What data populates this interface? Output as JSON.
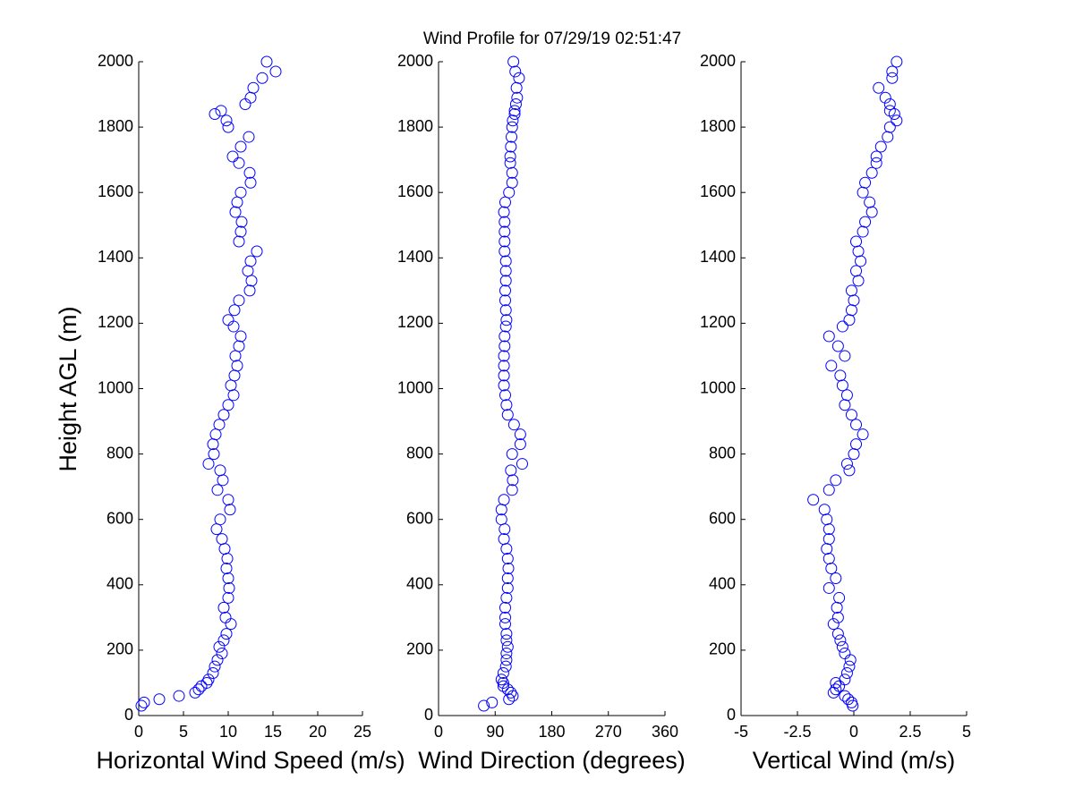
{
  "chart_data": [
    {
      "type": "scatter",
      "title": "Wind Profile for  07/29/19 02:51:47",
      "ylabel": "Height AGL (m)",
      "xlabel": "Horizontal Wind Speed (m/s)",
      "color": "#0000ff",
      "xlim": [
        0,
        25
      ],
      "xticks": [
        0,
        5,
        10,
        15,
        20,
        25
      ],
      "ylim": [
        0,
        2000
      ],
      "yticks": [
        0,
        200,
        400,
        600,
        800,
        1000,
        1200,
        1400,
        1600,
        1800,
        2000
      ],
      "x": [
        0.3,
        0.6,
        2.3,
        4.5,
        6.3,
        6.7,
        7,
        7.6,
        7.8,
        8.3,
        8.5,
        8.8,
        9.3,
        9,
        9.5,
        9.8,
        10.3,
        9.7,
        9.5,
        10,
        10.1,
        10,
        9.8,
        9.9,
        9.6,
        9.3,
        8.7,
        9.1,
        10.2,
        10,
        8.8,
        9.4,
        9.1,
        7.8,
        8.4,
        8.3,
        8.6,
        9,
        9.5,
        10,
        10.6,
        10.3,
        10.7,
        11,
        10.8,
        11.2,
        11.4,
        10.6,
        10,
        10.7,
        11.2,
        12.4,
        12.6,
        12.2,
        12.5,
        13.2,
        11.2,
        11.4,
        11.5,
        10.8,
        11,
        11.4,
        12.5,
        12.4,
        11.2,
        10.5,
        11.4,
        12.3,
        10,
        9.8,
        8.5,
        9.2,
        11.9,
        12.5,
        12.8,
        13.8,
        15.3,
        14.3
      ],
      "y": [
        30,
        40,
        50,
        60,
        70,
        80,
        90,
        100,
        110,
        130,
        150,
        170,
        190,
        210,
        230,
        250,
        280,
        300,
        330,
        360,
        390,
        420,
        450,
        480,
        510,
        540,
        570,
        600,
        630,
        660,
        690,
        720,
        750,
        770,
        800,
        830,
        860,
        890,
        920,
        950,
        980,
        1010,
        1040,
        1070,
        1100,
        1130,
        1160,
        1190,
        1210,
        1240,
        1270,
        1300,
        1330,
        1360,
        1390,
        1420,
        1450,
        1480,
        1510,
        1540,
        1570,
        1600,
        1630,
        1660,
        1690,
        1710,
        1740,
        1770,
        1800,
        1820,
        1840,
        1850,
        1870,
        1890,
        1920,
        1950,
        1970,
        2000
      ]
    },
    {
      "type": "scatter",
      "xlabel": "Wind Direction (degrees)",
      "color": "#0000ff",
      "xlim": [
        0,
        360
      ],
      "xticks": [
        0,
        90,
        180,
        270,
        360
      ],
      "ylim": [
        0,
        2000
      ],
      "yticks": [
        0,
        200,
        400,
        600,
        800,
        1000,
        1200,
        1400,
        1600,
        1800,
        2000
      ],
      "x": [
        72,
        85,
        112,
        118,
        115,
        110,
        103,
        103,
        100,
        103,
        107,
        108,
        108,
        110,
        108,
        108,
        106,
        106,
        106,
        108,
        110,
        110,
        111,
        110,
        108,
        104,
        105,
        100,
        100,
        104,
        117,
        118,
        115,
        133,
        117,
        130,
        130,
        120,
        110,
        108,
        106,
        104,
        104,
        104,
        104,
        105,
        105,
        107,
        108,
        107,
        106,
        106,
        107,
        107,
        107,
        105,
        105,
        105,
        105,
        104,
        106,
        112,
        117,
        117,
        114,
        114,
        115,
        116,
        117,
        118,
        121,
        121,
        123,
        125,
        124,
        128,
        122,
        119
      ],
      "y": [
        30,
        40,
        50,
        60,
        70,
        80,
        90,
        100,
        110,
        130,
        150,
        170,
        190,
        210,
        230,
        250,
        280,
        300,
        330,
        360,
        390,
        420,
        450,
        480,
        510,
        540,
        570,
        600,
        630,
        660,
        690,
        720,
        750,
        770,
        800,
        830,
        860,
        890,
        920,
        950,
        980,
        1010,
        1040,
        1070,
        1100,
        1130,
        1160,
        1190,
        1210,
        1240,
        1270,
        1300,
        1330,
        1360,
        1390,
        1420,
        1450,
        1480,
        1510,
        1540,
        1570,
        1600,
        1630,
        1660,
        1690,
        1710,
        1740,
        1770,
        1800,
        1820,
        1840,
        1850,
        1870,
        1890,
        1920,
        1950,
        1970,
        2000
      ]
    },
    {
      "type": "scatter",
      "xlabel": "Vertical Wind (m/s)",
      "color": "#0000ff",
      "xlim": [
        -5,
        5
      ],
      "xticks": [
        -5,
        -2.5,
        0,
        2.5,
        5
      ],
      "ylim": [
        0,
        2000
      ],
      "yticks": [
        0,
        200,
        400,
        600,
        800,
        1000,
        1200,
        1400,
        1600,
        1800,
        2000
      ],
      "x": [
        -0.05,
        -0.1,
        -0.25,
        -0.4,
        -0.9,
        -0.8,
        -0.65,
        -0.8,
        -0.4,
        -0.3,
        -0.2,
        -0.15,
        -0.4,
        -0.5,
        -0.6,
        -0.7,
        -0.9,
        -0.7,
        -0.75,
        -0.65,
        -1.1,
        -0.8,
        -1,
        -1.1,
        -1.2,
        -1.1,
        -1.1,
        -1.2,
        -1.3,
        -1.8,
        -1.1,
        -0.8,
        -0.2,
        -0.3,
        0,
        0.1,
        0.4,
        0.1,
        -0.1,
        -0.4,
        -0.3,
        -0.5,
        -0.6,
        -1,
        -0.4,
        -0.7,
        -1.1,
        -0.5,
        -0.2,
        -0.1,
        0,
        -0.1,
        0.2,
        0.1,
        0.3,
        0.2,
        0.1,
        0.4,
        0.5,
        0.8,
        0.7,
        0.4,
        0.5,
        0.8,
        1,
        1,
        1.2,
        1.5,
        1.6,
        1.9,
        1.8,
        1.6,
        1.6,
        1.4,
        1.1,
        1.7,
        1.7,
        1.9
      ],
      "y": [
        30,
        40,
        50,
        60,
        70,
        80,
        90,
        100,
        110,
        130,
        150,
        170,
        190,
        210,
        230,
        250,
        280,
        300,
        330,
        360,
        390,
        420,
        450,
        480,
        510,
        540,
        570,
        600,
        630,
        660,
        690,
        720,
        750,
        770,
        800,
        830,
        860,
        890,
        920,
        950,
        980,
        1010,
        1040,
        1070,
        1100,
        1130,
        1160,
        1190,
        1210,
        1240,
        1270,
        1300,
        1330,
        1360,
        1390,
        1420,
        1450,
        1480,
        1510,
        1540,
        1570,
        1600,
        1630,
        1660,
        1690,
        1710,
        1740,
        1770,
        1800,
        1820,
        1840,
        1850,
        1870,
        1890,
        1920,
        1950,
        1970,
        2000
      ]
    }
  ]
}
